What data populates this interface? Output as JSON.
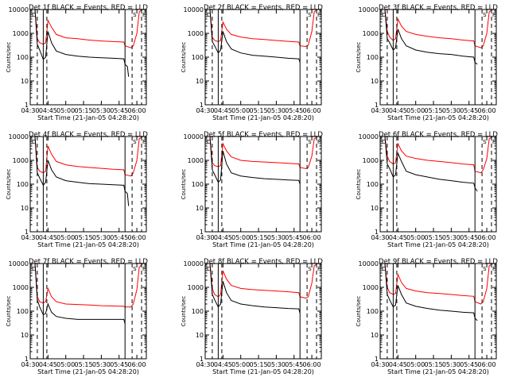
{
  "chart_data": {
    "type": "line",
    "layout": "3x3 grid",
    "shared": {
      "ylabel": "Counts/sec",
      "xlabel": "Start Time (21-Jan-05 04:28:20)",
      "yscale": "log",
      "ylim": [
        1,
        10000
      ],
      "xlim": [
        "04:30",
        "06:08"
      ],
      "x_tick_labels": [
        "04:30",
        "04:45",
        "05:00",
        "05:15",
        "05:30",
        "05:45",
        "06:00"
      ],
      "y_tick_labels": [
        "1",
        "10",
        "100",
        "1000",
        "10000"
      ],
      "legend_labels": [
        "D",
        "S",
        "F"
      ],
      "series_colors": {
        "events": "#000000",
        "lld": "#ff0000"
      },
      "grid": false
    },
    "panels": [
      {
        "title": "Det 1f BLACK = Events, RED = LLD",
        "series": [
          {
            "color": "#ff0000",
            "x": [
              "04:29",
              "04:30",
              "04:34",
              "04:36",
              "04:38",
              "04:41",
              "04:43",
              "04:45",
              "04:48",
              "04:52",
              "05:00",
              "05:10",
              "05:20",
              "05:30",
              "05:40",
              "05:49",
              "05:50",
              "05:55",
              "05:57",
              "06:00",
              "06:02",
              "06:05"
            ],
            "y": [
              10000,
              10000,
              10000,
              600,
              400,
              350,
              400,
              3500,
              1800,
              900,
              650,
              600,
              520,
              480,
              450,
              430,
              300,
              250,
              300,
              1000,
              8000,
              10000
            ]
          },
          {
            "color": "#000000",
            "x": [
              "04:29",
              "04:30",
              "04:34",
              "04:36",
              "04:38",
              "04:41",
              "04:43",
              "04:45",
              "04:48",
              "04:52",
              "05:00",
              "05:10",
              "05:20",
              "05:30",
              "05:40",
              "05:49",
              "05:50",
              "05:52",
              "05:53"
            ],
            "y": [
              10000,
              10000,
              10000,
              350,
              200,
              80,
              100,
              1200,
              400,
              180,
              130,
              110,
              100,
              95,
              90,
              85,
              50,
              40,
              15
            ]
          }
        ]
      },
      {
        "title": "Det 2f BLACK = Events, RED = LLD",
        "series": [
          {
            "color": "#ff0000",
            "x": [
              "04:29",
              "04:30",
              "04:34",
              "04:36",
              "04:38",
              "04:41",
              "04:43",
              "04:45",
              "04:48",
              "04:52",
              "05:00",
              "05:10",
              "05:20",
              "05:30",
              "05:40",
              "05:49",
              "05:50",
              "05:55",
              "05:57",
              "06:00",
              "06:02",
              "06:05"
            ],
            "y": [
              10000,
              10000,
              10000,
              700,
              500,
              450,
              500,
              3000,
              1500,
              900,
              700,
              600,
              550,
              500,
              460,
              430,
              300,
              280,
              320,
              1200,
              8000,
              10000
            ]
          },
          {
            "color": "#000000",
            "x": [
              "04:29",
              "04:30",
              "04:34",
              "04:36",
              "04:38",
              "04:41",
              "04:43",
              "04:45",
              "04:48",
              "04:52",
              "05:00",
              "05:10",
              "05:20",
              "05:30",
              "05:40",
              "05:49",
              "05:50"
            ],
            "y": [
              10000,
              10000,
              10000,
              450,
              300,
              150,
              200,
              1200,
              450,
              220,
              150,
              120,
              110,
              100,
              90,
              85,
              60
            ]
          }
        ]
      },
      {
        "title": "Det 3f BLACK = Events, RED = LLD",
        "series": [
          {
            "color": "#ff0000",
            "x": [
              "04:29",
              "04:30",
              "04:34",
              "04:36",
              "04:38",
              "04:41",
              "04:43",
              "04:45",
              "04:48",
              "04:52",
              "05:00",
              "05:10",
              "05:20",
              "05:30",
              "05:40",
              "05:49",
              "05:50",
              "05:55",
              "05:57",
              "06:00",
              "06:02",
              "06:05"
            ],
            "y": [
              10000,
              10000,
              10000,
              1200,
              700,
              500,
              600,
              4000,
              2000,
              1200,
              900,
              750,
              650,
              600,
              520,
              480,
              300,
              250,
              300,
              1000,
              8000,
              10000
            ]
          },
          {
            "color": "#000000",
            "x": [
              "04:29",
              "04:30",
              "04:34",
              "04:36",
              "04:38",
              "04:41",
              "04:43",
              "04:45",
              "04:48",
              "04:52",
              "05:00",
              "05:10",
              "05:20",
              "05:30",
              "05:40",
              "05:49",
              "05:50",
              "05:52"
            ],
            "y": [
              10000,
              10000,
              10000,
              600,
              400,
              200,
              250,
              1500,
              600,
              300,
              200,
              160,
              140,
              130,
              110,
              100,
              60,
              50
            ]
          }
        ]
      },
      {
        "title": "Det 4f BLACK = Events, RED = LLD",
        "series": [
          {
            "color": "#ff0000",
            "x": [
              "04:29",
              "04:30",
              "04:34",
              "04:36",
              "04:38",
              "04:41",
              "04:43",
              "04:45",
              "04:48",
              "04:52",
              "05:00",
              "05:10",
              "05:20",
              "05:30",
              "05:40",
              "05:49",
              "05:50",
              "05:55",
              "05:57",
              "06:00",
              "06:02",
              "06:05"
            ],
            "y": [
              10000,
              10000,
              10000,
              500,
              350,
              300,
              350,
              4000,
              1800,
              900,
              650,
              550,
              500,
              460,
              420,
              400,
              250,
              220,
              300,
              1000,
              8000,
              10000
            ]
          },
          {
            "color": "#000000",
            "x": [
              "04:29",
              "04:30",
              "04:34",
              "04:36",
              "04:38",
              "04:41",
              "04:43",
              "04:45",
              "04:48",
              "04:52",
              "05:00",
              "05:10",
              "05:20",
              "05:30",
              "05:40",
              "05:49",
              "05:50",
              "05:52",
              "05:53"
            ],
            "y": [
              10000,
              10000,
              10000,
              300,
              180,
              90,
              120,
              1000,
              400,
              200,
              140,
              120,
              105,
              100,
              95,
              90,
              50,
              40,
              12
            ]
          }
        ]
      },
      {
        "title": "Det 5f BLACK = Events, RED = LLD",
        "series": [
          {
            "color": "#ff0000",
            "x": [
              "04:29",
              "04:30",
              "04:34",
              "04:36",
              "04:38",
              "04:41",
              "04:43",
              "04:45",
              "04:48",
              "04:52",
              "05:00",
              "05:10",
              "05:20",
              "05:30",
              "05:40",
              "05:49",
              "05:50",
              "05:55",
              "05:57",
              "06:00",
              "06:02",
              "06:05"
            ],
            "y": [
              10000,
              10000,
              10000,
              800,
              600,
              550,
              600,
              5000,
              2500,
              1400,
              1000,
              900,
              850,
              800,
              750,
              700,
              500,
              450,
              500,
              1500,
              8000,
              10000
            ]
          },
          {
            "color": "#000000",
            "x": [
              "04:29",
              "04:30",
              "04:34",
              "04:36",
              "04:38",
              "04:41",
              "04:43",
              "04:45",
              "04:48",
              "04:52",
              "05:00",
              "05:10",
              "05:20",
              "05:30",
              "05:40",
              "05:49",
              "05:50"
            ],
            "y": [
              10000,
              10000,
              10000,
              400,
              250,
              120,
              150,
              2500,
              700,
              300,
              220,
              190,
              170,
              160,
              150,
              145,
              100
            ]
          }
        ]
      },
      {
        "title": "Det 6f BLACK = Events, RED = LLD",
        "series": [
          {
            "color": "#ff0000",
            "x": [
              "04:29",
              "04:30",
              "04:34",
              "04:36",
              "04:38",
              "04:41",
              "04:43",
              "04:45",
              "04:48",
              "04:52",
              "05:00",
              "05:10",
              "05:20",
              "05:30",
              "05:40",
              "05:49",
              "05:50",
              "05:55",
              "05:57",
              "06:00",
              "06:02",
              "06:05"
            ],
            "y": [
              10000,
              10000,
              10000,
              1500,
              900,
              700,
              800,
              5000,
              2500,
              1500,
              1200,
              1000,
              900,
              800,
              700,
              650,
              350,
              300,
              400,
              1200,
              8000,
              10000
            ]
          },
          {
            "color": "#000000",
            "x": [
              "04:29",
              "04:30",
              "04:34",
              "04:36",
              "04:38",
              "04:41",
              "04:43",
              "04:45",
              "04:48",
              "04:52",
              "05:00",
              "05:10",
              "05:20",
              "05:30",
              "05:40",
              "05:49",
              "05:50",
              "05:52"
            ],
            "y": [
              10000,
              10000,
              10000,
              700,
              450,
              200,
              250,
              2000,
              900,
              350,
              250,
              200,
              160,
              140,
              120,
              110,
              70,
              50
            ]
          }
        ]
      },
      {
        "title": "Det 7f BLACK = Events, RED = LLD",
        "series": [
          {
            "color": "#ff0000",
            "x": [
              "04:29",
              "04:30",
              "04:34",
              "04:36",
              "04:38",
              "04:41",
              "04:43",
              "04:45",
              "04:48",
              "04:52",
              "05:00",
              "05:10",
              "05:20",
              "05:30",
              "05:40",
              "05:49",
              "05:50",
              "05:55",
              "05:57",
              "06:00",
              "06:02",
              "06:05"
            ],
            "y": [
              10000,
              10000,
              10000,
              400,
              250,
              220,
              250,
              900,
              400,
              250,
              200,
              190,
              180,
              170,
              165,
              160,
              150,
              150,
              200,
              800,
              7000,
              10000
            ]
          },
          {
            "color": "#000000",
            "x": [
              "04:29",
              "04:30",
              "04:34",
              "04:36",
              "04:38",
              "04:41",
              "04:43",
              "04:45",
              "04:48",
              "04:52",
              "05:00",
              "05:10",
              "05:20",
              "05:30",
              "05:40",
              "05:49",
              "05:50"
            ],
            "y": [
              10000,
              10000,
              10000,
              300,
              150,
              70,
              80,
              200,
              90,
              60,
              50,
              45,
              45,
              45,
              45,
              45,
              30
            ]
          }
        ]
      },
      {
        "title": "Det 8f BLACK = Events, RED = LLD",
        "series": [
          {
            "color": "#ff0000",
            "x": [
              "04:29",
              "04:30",
              "04:34",
              "04:36",
              "04:38",
              "04:41",
              "04:43",
              "04:45",
              "04:48",
              "04:52",
              "05:00",
              "05:10",
              "05:20",
              "05:30",
              "05:40",
              "05:49",
              "05:50",
              "05:55",
              "05:57",
              "06:00",
              "06:02",
              "06:05"
            ],
            "y": [
              10000,
              10000,
              10000,
              900,
              500,
              400,
              500,
              5000,
              2200,
              1200,
              900,
              800,
              750,
              700,
              650,
              600,
              400,
              350,
              400,
              1500,
              8000,
              10000
            ]
          },
          {
            "color": "#000000",
            "x": [
              "04:29",
              "04:30",
              "04:34",
              "04:36",
              "04:38",
              "04:41",
              "04:43",
              "04:45",
              "04:48",
              "04:52",
              "05:00",
              "05:10",
              "05:20",
              "05:30",
              "05:40",
              "05:49",
              "05:50"
            ],
            "y": [
              10000,
              10000,
              10000,
              500,
              300,
              150,
              200,
              1800,
              600,
              280,
              200,
              170,
              150,
              140,
              130,
              125,
              80
            ]
          }
        ]
      },
      {
        "title": "Det 9f BLACK = Events, RED = LLD",
        "series": [
          {
            "color": "#ff0000",
            "x": [
              "04:29",
              "04:30",
              "04:34",
              "04:36",
              "04:38",
              "04:41",
              "04:43",
              "04:45",
              "04:48",
              "04:52",
              "05:00",
              "05:10",
              "05:20",
              "05:30",
              "05:40",
              "05:49",
              "05:50",
              "05:55",
              "05:57",
              "06:00",
              "06:02",
              "06:05"
            ],
            "y": [
              10000,
              10000,
              10000,
              1000,
              600,
              500,
              550,
              3500,
              1600,
              900,
              700,
              600,
              550,
              500,
              450,
              420,
              250,
              200,
              250,
              900,
              8000,
              10000
            ]
          },
          {
            "color": "#000000",
            "x": [
              "04:29",
              "04:30",
              "04:34",
              "04:36",
              "04:38",
              "04:41",
              "04:43",
              "04:45",
              "04:48",
              "04:52",
              "05:00",
              "05:10",
              "05:20",
              "05:30",
              "05:40",
              "05:49",
              "05:50",
              "05:52"
            ],
            "y": [
              10000,
              10000,
              10000,
              500,
              300,
              150,
              180,
              1200,
              500,
              220,
              160,
              130,
              110,
              100,
              90,
              85,
              50,
              40
            ]
          }
        ]
      }
    ]
  }
}
